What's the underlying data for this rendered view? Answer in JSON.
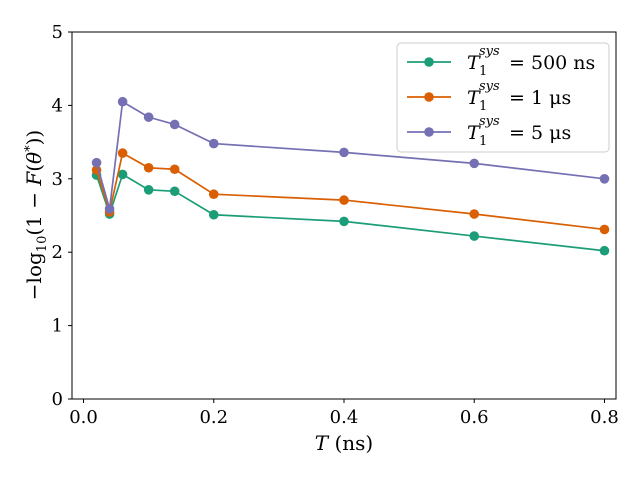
{
  "chart_data": {
    "type": "line",
    "title": "",
    "xlabel": "T (ns)",
    "ylabel": "−log10(1 − F(θ*))",
    "xlim": [
      -0.0177,
      0.8177
    ],
    "ylim": [
      0,
      5
    ],
    "xticks": [
      0.0,
      0.2,
      0.4,
      0.6,
      0.8
    ],
    "xtick_labels": [
      "0.0",
      "0.2",
      "0.4",
      "0.6",
      "0.8"
    ],
    "yticks": [
      0,
      1,
      2,
      3,
      4,
      5
    ],
    "ytick_labels": [
      "0",
      "1",
      "2",
      "3",
      "4",
      "5"
    ],
    "grid": false,
    "legend_position": "top-right",
    "x": [
      0.02,
      0.04,
      0.06,
      0.1,
      0.14,
      0.2,
      0.4,
      0.6,
      0.8
    ],
    "series": [
      {
        "name": "T1^sys = 500 ns",
        "legend_main": "T",
        "legend_sub": "1",
        "legend_sup": "sys",
        "legend_rest": " = 500 ns",
        "color": "#1b9e77",
        "values": [
          3.05,
          2.52,
          3.06,
          2.85,
          2.83,
          2.51,
          2.42,
          2.22,
          2.02
        ]
      },
      {
        "name": "T1^sys = 1 μs",
        "legend_main": "T",
        "legend_sub": "1",
        "legend_sup": "sys",
        "legend_rest": " = 1 μs",
        "color": "#d95f02",
        "values": [
          3.12,
          2.55,
          3.35,
          3.15,
          3.13,
          2.79,
          2.71,
          2.52,
          2.31
        ]
      },
      {
        "name": "T1^sys = 5 μs",
        "legend_main": "T",
        "legend_sub": "1",
        "legend_sup": "sys",
        "legend_rest": " = 5 μs",
        "color": "#7570b3",
        "values": [
          3.22,
          2.59,
          4.05,
          3.84,
          3.74,
          3.48,
          3.36,
          3.21,
          3.0
        ]
      }
    ]
  }
}
